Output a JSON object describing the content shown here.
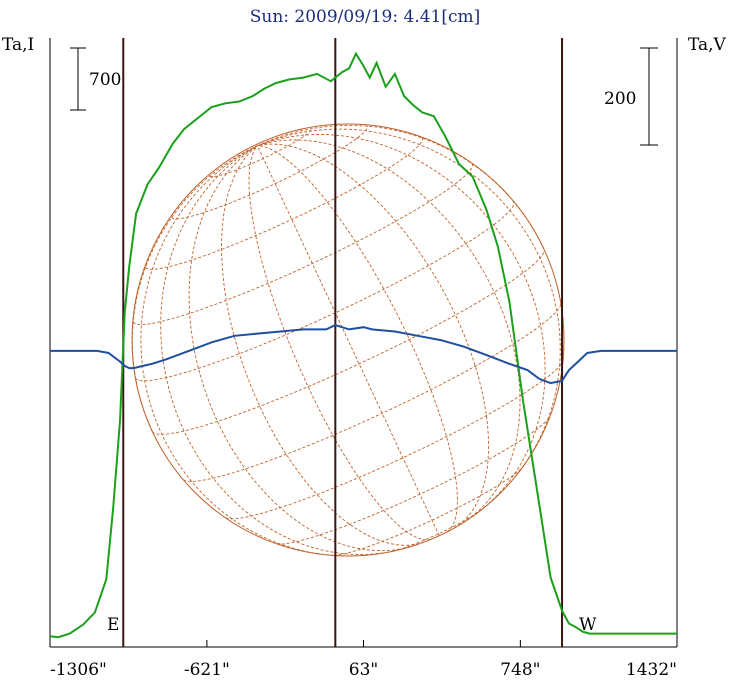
{
  "chart_data": {
    "type": "line",
    "title": "Sun: 2009/09/19: 4.41[cm]",
    "left_axis_label": "Ta,I",
    "right_axis_label": "Ta,V",
    "left_scale_bar": "700",
    "right_scale_bar": "200",
    "x_ticks": [
      "-1306\"",
      "-621\"",
      "63\"",
      "748\"",
      "1432\""
    ],
    "x_tick_values": [
      -1306,
      -621,
      63,
      748,
      1432
    ],
    "limb_labels": {
      "east": "E",
      "west": "W"
    },
    "vertical_lines_arcsec": [
      -986,
      -60,
      930
    ],
    "colors": {
      "intensity": "#1aa01a",
      "polarization": "#1f4f9e",
      "disk": "#c0622a",
      "marker_lines": "#3a1414"
    },
    "series": [
      {
        "name": "Ta,I",
        "x": [
          -1306,
          -1270,
          -1220,
          -1160,
          -1110,
          -1060,
          -1030,
          -1000,
          -980,
          -960,
          -930,
          -880,
          -830,
          -770,
          -720,
          -660,
          -600,
          -540,
          -480,
          -420,
          -370,
          -320,
          -260,
          -200,
          -140,
          -80,
          -30,
          0,
          30,
          60,
          90,
          120,
          160,
          200,
          240,
          280,
          320,
          370,
          420,
          480,
          540,
          600,
          650,
          700,
          760,
          820,
          880,
          930,
          960,
          990,
          1020,
          1050,
          1100,
          1160,
          1250,
          1432
        ],
        "values": [
          20,
          15,
          35,
          85,
          150,
          330,
          720,
          1200,
          1780,
          2030,
          2320,
          2480,
          2570,
          2700,
          2780,
          2840,
          2900,
          2920,
          2930,
          2960,
          3000,
          3030,
          3050,
          3060,
          3080,
          3040,
          3090,
          3110,
          3190,
          3130,
          3060,
          3140,
          3010,
          3080,
          2960,
          2910,
          2870,
          2850,
          2740,
          2590,
          2520,
          2340,
          2140,
          1840,
          1300,
          820,
          340,
          160,
          90,
          70,
          45,
          35,
          35,
          35,
          35,
          35
        ]
      },
      {
        "name": "Ta,V",
        "x": [
          -1306,
          -1200,
          -1100,
          -1050,
          -1000,
          -980,
          -960,
          -940,
          -900,
          -860,
          -800,
          -700,
          -600,
          -500,
          -400,
          -300,
          -200,
          -100,
          -60,
          0,
          63,
          100,
          200,
          300,
          400,
          500,
          600,
          700,
          780,
          830,
          880,
          930,
          960,
          1000,
          1040,
          1100,
          1200,
          1432
        ],
        "values": [
          1,
          1,
          1,
          0,
          -4,
          -6,
          -7,
          -7,
          -6,
          -5,
          -3,
          1,
          5,
          8,
          9,
          10,
          11,
          11,
          13,
          11,
          12,
          11,
          10,
          8,
          6,
          3,
          -1,
          -5,
          -8,
          -12,
          -14,
          -13,
          -8,
          -4,
          0,
          1,
          1,
          1
        ]
      }
    ]
  }
}
